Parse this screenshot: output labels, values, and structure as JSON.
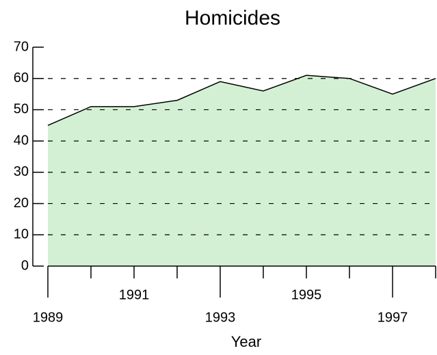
{
  "chart_data": {
    "type": "area",
    "title": "Homicides",
    "x_label": "Year",
    "x": [
      1989,
      1990,
      1991,
      1992,
      1993,
      1994,
      1995,
      1996,
      1997,
      1998
    ],
    "values": [
      45,
      51,
      51,
      53,
      59,
      56,
      61,
      60,
      55,
      60
    ],
    "color": "#d4f0d4",
    "line_color": "#000000",
    "xlim": [
      1989,
      1998
    ],
    "xticks": [
      1989,
      1991,
      1993,
      1995,
      1997
    ],
    "xminor_ticks": [
      1990,
      1992,
      1994,
      1996,
      1998
    ],
    "ylim": [
      0,
      70
    ],
    "yticks": [
      0,
      10,
      20,
      30,
      40,
      50,
      60,
      70
    ],
    "grid_lines": [
      10,
      20,
      30,
      40,
      50,
      60
    ],
    "grid": true
  }
}
